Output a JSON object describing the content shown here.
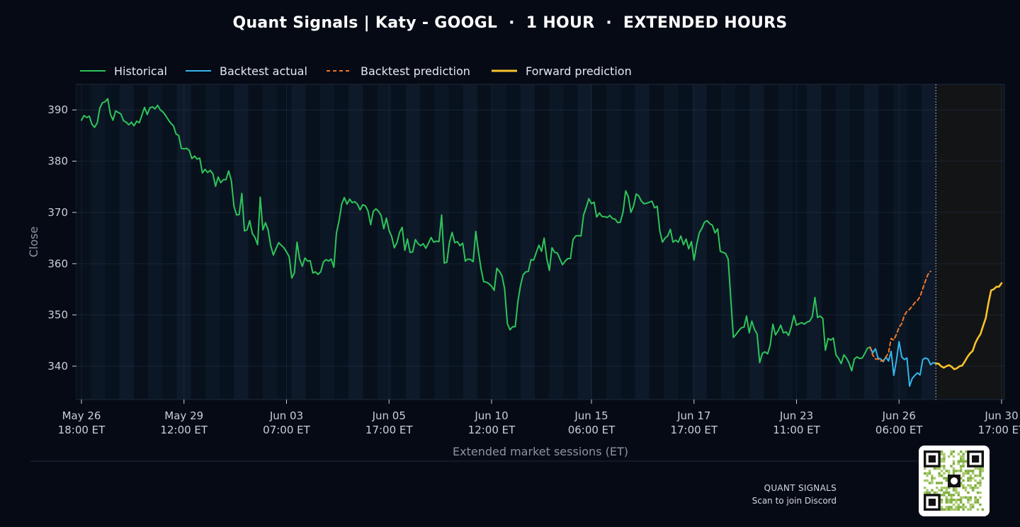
{
  "title": "Quant Signals | Katy - GOOGL  ·  1 HOUR  ·  EXTENDED HOURS",
  "footer": {
    "brand": "QUANT SIGNALS",
    "subtitle": "Scan to join Discord"
  },
  "qr_icon": "qr-code-icon",
  "colors": {
    "background": "#050a15",
    "historical": "#2fc45a",
    "backtest_actual": "#35b5ea",
    "backtest_prediction": "#f0782a",
    "forward_prediction": "#f7c22b"
  },
  "chart_data": {
    "type": "line",
    "title": "Quant Signals | Katy - GOOGL  ·  1 HOUR  ·  EXTENDED HOURS",
    "xlabel": "Extended market sessions (ET)",
    "ylabel": "Close",
    "ylim": [
      333.5,
      395
    ],
    "yticks": [
      340,
      350,
      360,
      370,
      380,
      390
    ],
    "x_ticks": [
      {
        "line1": "May 26",
        "line2": "18:00 ET"
      },
      {
        "line1": "May 29",
        "line2": "12:00 ET"
      },
      {
        "line1": "Jun 03",
        "line2": "07:00 ET"
      },
      {
        "line1": "Jun 05",
        "line2": "17:00 ET"
      },
      {
        "line1": "Jun 10",
        "line2": "12:00 ET"
      },
      {
        "line1": "Jun 15",
        "line2": "06:00 ET"
      },
      {
        "line1": "Jun 17",
        "line2": "17:00 ET"
      },
      {
        "line1": "Jun 23",
        "line2": "11:00 ET"
      },
      {
        "line1": "Jun 26",
        "line2": "06:00 ET"
      },
      {
        "line1": "Jun 30",
        "line2": "17:00 ET"
      }
    ],
    "grid": true,
    "legend_position": "top-left",
    "series": [
      {
        "name": "Historical",
        "style": "solid",
        "values": [
          388.0,
          388.9,
          388.5,
          388.8,
          387.2,
          386.6,
          387.5,
          390.4,
          391.4,
          391.6,
          392.2,
          389.2,
          388.0,
          389.8,
          389.5,
          389.2,
          387.9,
          387.6,
          387.1,
          387.6,
          386.9,
          387.8,
          387.5,
          389.0,
          390.5,
          389.1,
          390.4,
          390.6,
          390.2,
          390.9,
          390.0,
          389.6,
          388.9,
          388.1,
          387.4,
          386.9,
          385.3,
          385.0,
          382.5,
          382.4,
          382.5,
          382.1,
          380.5,
          381.0,
          380.4,
          380.6,
          377.7,
          378.4,
          377.8,
          378.2,
          377.5,
          375.1,
          376.9,
          375.8,
          376.4,
          376.4,
          378.1,
          376.2,
          371.2,
          369.5,
          369.6,
          373.7,
          366.4,
          366.6,
          368.4,
          365.9,
          365.1,
          363.7,
          373.0,
          366.6,
          368.0,
          366.6,
          363.5,
          361.7,
          362.9,
          364.1,
          363.6,
          363.1,
          362.3,
          361.4,
          357.2,
          358.2,
          364.2,
          360.9,
          359.5,
          361.1,
          360.5,
          360.6,
          358.2,
          358.4,
          357.9,
          358.4,
          360.3,
          360.8,
          360.5,
          360.9,
          359.3,
          366.0,
          368.4,
          371.6,
          372.9,
          371.6,
          372.6,
          371.9,
          372.1,
          371.6,
          370.5,
          371.5,
          371.3,
          370.3,
          367.6,
          370.2,
          370.7,
          370.2,
          369.4,
          366.8,
          368.9,
          366.5,
          365.3,
          363.1,
          364.1,
          366.1,
          367.1,
          362.6,
          364.8,
          362.2,
          362.3,
          364.7,
          363.9,
          363.5,
          363.9,
          363.0,
          364.0,
          365.1,
          364.2,
          364.4,
          364.3,
          369.5,
          360.1,
          360.3,
          364.2,
          366.1,
          364.1,
          364.3,
          363.5,
          364.0,
          360.5,
          360.9,
          360.8,
          360.4,
          366.3,
          362.4,
          359.0,
          356.5,
          356.4,
          356.1,
          355.6,
          354.8,
          359.1,
          358.5,
          357.6,
          355.0,
          348.3,
          347.1,
          347.7,
          347.7,
          352.6,
          355.7,
          357.8,
          358.4,
          358.5,
          360.8,
          360.7,
          362.2,
          363.6,
          362.4,
          365.0,
          361.0,
          358.7,
          363.1,
          362.2,
          362.1,
          360.9,
          359.8,
          360.5,
          361.0,
          361.0,
          364.7,
          365.4,
          365.5,
          365.4,
          369.5,
          371.0,
          372.7,
          371.7,
          372.0,
          369.1,
          369.9,
          369.2,
          369.2,
          369.0,
          369.4,
          368.8,
          368.7,
          368.0,
          368.1,
          370.1,
          374.2,
          373.1,
          370.0,
          371.2,
          373.6,
          373.2,
          372.2,
          371.7,
          371.8,
          372.0,
          372.2,
          370.9,
          371.2,
          366.4,
          364.2,
          365.0,
          365.4,
          366.7,
          364.2,
          364.6,
          364.2,
          365.4,
          363.7,
          364.8,
          362.9,
          364.3,
          360.7,
          363.7,
          366.0,
          366.9,
          368.1,
          368.4,
          367.8,
          367.5,
          366.0,
          366.8,
          362.4,
          362.2,
          362.0,
          360.9,
          353.2,
          345.6,
          346.2,
          346.9,
          347.5,
          347.6,
          349.8,
          346.5,
          348.8,
          347.2,
          346.3,
          340.7,
          342.5,
          342.8,
          342.4,
          344.1,
          348.2,
          346.1,
          346.9,
          348.0,
          346.5,
          346.7,
          346.0,
          347.7,
          349.9,
          348.0,
          348.3,
          348.5,
          348.2,
          348.6,
          348.8,
          349.7,
          353.4,
          349.5,
          349.8,
          349.3,
          343.1,
          345.4,
          345.1,
          345.5,
          342.2,
          341.5,
          340.5,
          342.2,
          341.6,
          340.6,
          339.1,
          341.4,
          341.8,
          341.5,
          341.6,
          342.5,
          343.5,
          343.7
        ]
      },
      {
        "name": "Backtest actual",
        "style": "solid",
        "values": [
          343.7,
          342.6,
          343.4,
          341.6,
          341.4,
          340.9,
          341.8,
          341.0,
          342.9,
          338.2,
          341.1,
          344.8,
          341.8,
          341.3,
          341.6,
          336.1,
          337.6,
          338.2,
          338.7,
          338.3,
          341.3,
          341.6,
          341.4,
          340.3,
          340.7,
          340.5
        ]
      },
      {
        "name": "Backtest prediction",
        "style": "dashed",
        "values": [
          343.7,
          342.2,
          341.4,
          341.4,
          341.0,
          341.1,
          341.8,
          342.6,
          345.4,
          345.1,
          346.2,
          347.6,
          348.3,
          349.9,
          350.7,
          351.1,
          351.7,
          352.4,
          352.8,
          353.6,
          355.1,
          356.6,
          357.9,
          358.5
        ]
      },
      {
        "name": "Forward prediction",
        "style": "solid",
        "values": [
          340.5,
          340.5,
          340.0,
          339.7,
          340.0,
          340.2,
          339.9,
          339.4,
          339.6,
          340.0,
          340.1,
          340.9,
          341.8,
          342.5,
          343.0,
          344.5,
          345.5,
          346.3,
          347.9,
          349.4,
          352.3,
          354.8,
          355.0,
          355.5,
          355.5,
          356.2
        ]
      }
    ]
  }
}
